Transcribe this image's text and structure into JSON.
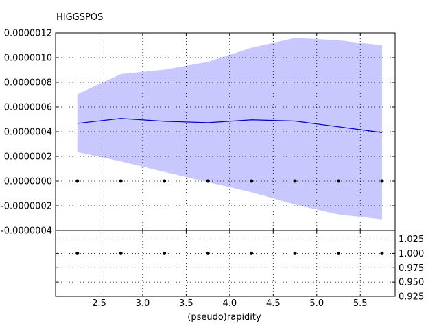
{
  "chart_data": {
    "type": "line",
    "title": "HIGGSPOS",
    "xlabel": "(pseudo)rapidity",
    "colors": {
      "band": "#c8c8ff",
      "line": "#0000cc",
      "points": "#000000"
    },
    "main": {
      "xlim": [
        2.0,
        5.9
      ],
      "ylim": [
        -4e-07,
        1.2e-06
      ],
      "yticks": [
        "0.0000012",
        "0.0000010",
        "0.0000008",
        "0.0000006",
        "0.0000004",
        "0.0000002",
        "0.0000000",
        "-0.0000002",
        "-0.0000004"
      ],
      "ytick_values": [
        1.2e-06,
        1e-06,
        8e-07,
        6e-07,
        4e-07,
        2e-07,
        0.0,
        -2e-07,
        -4e-07
      ],
      "x": [
        2.25,
        2.75,
        3.25,
        3.75,
        4.25,
        4.75,
        5.25,
        5.75
      ],
      "series": [
        {
          "values": [
            4.67e-07,
            5.07e-07,
            4.84e-07,
            4.73e-07,
            4.96e-07,
            4.86e-07,
            4.4e-07,
            3.93e-07
          ]
        }
      ],
      "band": {
        "upper": [
          7.03e-07,
          8.67e-07,
          9.03e-07,
          9.65e-07,
          1.08e-06,
          1.16e-06,
          1.14e-06,
          1.1e-06
        ],
        "lower": [
          2.35e-07,
          1.6e-07,
          7.4e-08,
          -8e-09,
          -9e-08,
          -1.9e-07,
          -2.7e-07,
          -3.1e-07
        ]
      },
      "points": [
        0,
        0,
        0,
        0,
        0,
        0,
        0,
        0
      ]
    },
    "ratio": {
      "ylim": [
        0.925,
        1.04
      ],
      "yticks": [
        "1.025",
        "1.000",
        "0.975",
        "0.950",
        "0.925"
      ],
      "ytick_values": [
        1.025,
        1.0,
        0.975,
        0.95,
        0.925
      ],
      "points": [
        1,
        1,
        1,
        1,
        1,
        1,
        1,
        1
      ]
    },
    "xticks": [
      "2.5",
      "3.0",
      "3.5",
      "4.0",
      "4.5",
      "5.0",
      "5.5"
    ],
    "xtick_values": [
      2.5,
      3.0,
      3.5,
      4.0,
      4.5,
      5.0,
      5.5
    ],
    "grid": true
  }
}
